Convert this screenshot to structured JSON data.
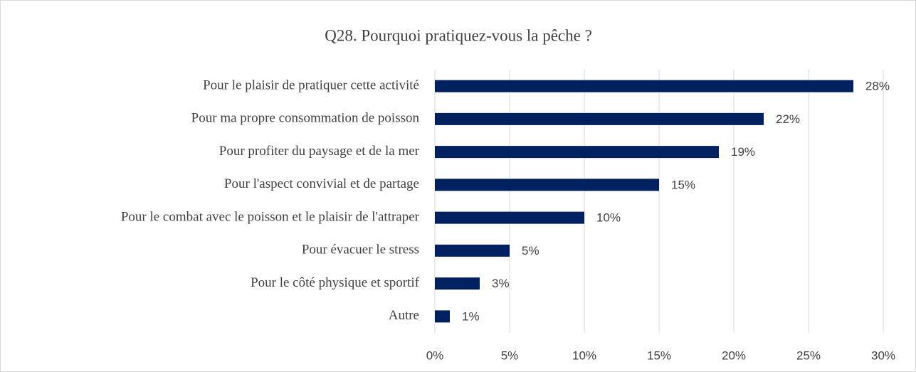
{
  "chart_data": {
    "type": "bar",
    "orientation": "horizontal",
    "title": "Q28. Pourquoi pratiquez-vous la pêche ?",
    "categories": [
      "Pour le plaisir de pratiquer cette activité",
      "Pour ma propre consommation de poisson",
      "Pour profiter du paysage et de la mer",
      "Pour l'aspect convivial et de partage",
      "Pour le combat avec le poisson et le plaisir de l'attraper",
      "Pour évacuer le stress",
      "Pour le côté physique et sportif",
      "Autre"
    ],
    "values": [
      28,
      22,
      19,
      15,
      10,
      5,
      3,
      1
    ],
    "value_labels": [
      "28%",
      "22%",
      "19%",
      "15%",
      "10%",
      "5%",
      "3%",
      "1%"
    ],
    "color": "#002060",
    "xlim": [
      0,
      30
    ],
    "xticks": [
      {
        "value": 0,
        "label": "0%"
      },
      {
        "value": 5,
        "label": "5%"
      },
      {
        "value": 10,
        "label": "10%"
      },
      {
        "value": 15,
        "label": "15%"
      },
      {
        "value": 20,
        "label": "20%"
      },
      {
        "value": 25,
        "label": "25%"
      },
      {
        "value": 30,
        "label": "30%"
      }
    ],
    "grid": true
  }
}
